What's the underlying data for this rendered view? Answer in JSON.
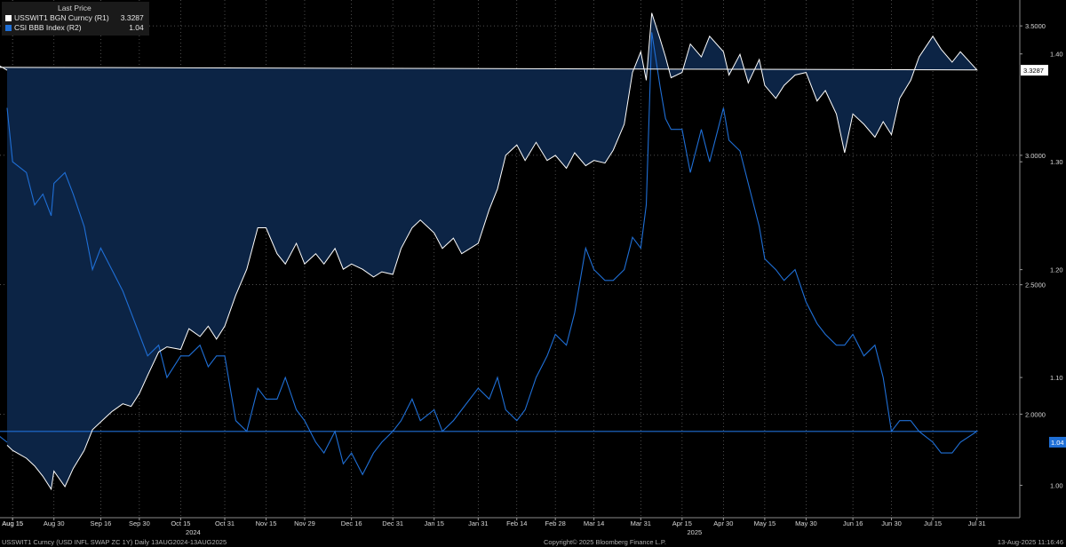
{
  "legend": {
    "header": "Last Price",
    "items": [
      {
        "label": "USSWIT1 BGN Curncy  (R1)",
        "value": "3.3287",
        "color": "#ffffff"
      },
      {
        "label": "CSI BBB Index  (R2)",
        "value": "1.04",
        "color": "#1f6fd6"
      }
    ]
  },
  "footer": {
    "left": "USSWIT1 Curncy (USD INFL SWAP ZC 1Y)  Daily 13AUG2024-13AUG2025",
    "center": "Copyright© 2025 Bloomberg Finance L.P.",
    "right": "13-Aug-2025 11:16:46"
  },
  "colors": {
    "background": "#000000",
    "swap_line": "#ffffff",
    "swap_fill": "#0c2445",
    "csi_line": "#1f6fd6",
    "grid": "#6a6a6a"
  },
  "chart_data": {
    "type": "line",
    "title": "",
    "x_tick_labels": [
      "Aug 15",
      "Aug 30",
      "Sep 16",
      "Sep 30",
      "Oct 15",
      "Oct 31",
      "Nov 15",
      "Nov 29",
      "Dec 16",
      "Dec 31",
      "Jan 15",
      "Jan 31",
      "Feb 14",
      "Feb 28",
      "Mar 14",
      "Mar 31",
      "Apr 15",
      "Apr 30",
      "May 15",
      "May 30",
      "Jun 16",
      "Jun 30",
      "Jul 15",
      "Jul 31",
      "Aug 15"
    ],
    "x_year_labels": [
      {
        "after": "Oct 15",
        "label": "2024"
      },
      {
        "after": "Apr 15",
        "label": "2025"
      }
    ],
    "axes": {
      "R1": {
        "ticks": [
          "2.0000",
          "2.5000",
          "3.0000",
          "3.5000"
        ],
        "ylim": [
          1.6,
          3.6
        ]
      },
      "R2": {
        "ticks": [
          "1.00",
          "1.10",
          "1.20",
          "1.30",
          "1.40"
        ],
        "ylim": [
          0.97,
          1.45
        ]
      }
    },
    "grid": true,
    "legend_position": "top-left",
    "series": [
      {
        "name": "USSWIT1 BGN Curncy",
        "axis": "R1",
        "style": "filled line",
        "last": "3.3287",
        "points": [
          [
            "Aug 13",
            1.88
          ],
          [
            "Aug 15",
            1.86
          ],
          [
            "Aug 20",
            1.83
          ],
          [
            "Aug 23",
            1.8
          ],
          [
            "Aug 26",
            1.76
          ],
          [
            "Aug 29",
            1.71
          ],
          [
            "Aug 30",
            1.78
          ],
          [
            "Sep 3",
            1.72
          ],
          [
            "Sep 6",
            1.79
          ],
          [
            "Sep 10",
            1.86
          ],
          [
            "Sep 13",
            1.94
          ],
          [
            "Sep 16",
            1.97
          ],
          [
            "Sep 20",
            2.01
          ],
          [
            "Sep 24",
            2.04
          ],
          [
            "Sep 27",
            2.03
          ],
          [
            "Sep 30",
            2.08
          ],
          [
            "Oct 3",
            2.15
          ],
          [
            "Oct 7",
            2.24
          ],
          [
            "Oct 10",
            2.26
          ],
          [
            "Oct 15",
            2.25
          ],
          [
            "Oct 18",
            2.33
          ],
          [
            "Oct 22",
            2.3
          ],
          [
            "Oct 25",
            2.34
          ],
          [
            "Oct 28",
            2.29
          ],
          [
            "Oct 31",
            2.34
          ],
          [
            "Nov 4",
            2.46
          ],
          [
            "Nov 8",
            2.56
          ],
          [
            "Nov 12",
            2.72
          ],
          [
            "Nov 15",
            2.72
          ],
          [
            "Nov 19",
            2.62
          ],
          [
            "Nov 22",
            2.58
          ],
          [
            "Nov 26",
            2.66
          ],
          [
            "Nov 29",
            2.58
          ],
          [
            "Dec 3",
            2.62
          ],
          [
            "Dec 6",
            2.58
          ],
          [
            "Dec 10",
            2.64
          ],
          [
            "Dec 13",
            2.56
          ],
          [
            "Dec 16",
            2.58
          ],
          [
            "Dec 20",
            2.56
          ],
          [
            "Dec 24",
            2.53
          ],
          [
            "Dec 27",
            2.55
          ],
          [
            "Dec 31",
            2.54
          ],
          [
            "Jan 3",
            2.64
          ],
          [
            "Jan 7",
            2.72
          ],
          [
            "Jan 10",
            2.75
          ],
          [
            "Jan 15",
            2.7
          ],
          [
            "Jan 18",
            2.64
          ],
          [
            "Jan 22",
            2.68
          ],
          [
            "Jan 25",
            2.62
          ],
          [
            "Jan 31",
            2.66
          ],
          [
            "Feb 4",
            2.79
          ],
          [
            "Feb 7",
            2.87
          ],
          [
            "Feb 10",
            3.0
          ],
          [
            "Feb 14",
            3.04
          ],
          [
            "Feb 17",
            2.98
          ],
          [
            "Feb 21",
            3.05
          ],
          [
            "Feb 25",
            2.98
          ],
          [
            "Feb 28",
            3.0
          ],
          [
            "Mar 4",
            2.95
          ],
          [
            "Mar 7",
            3.01
          ],
          [
            "Mar 11",
            2.96
          ],
          [
            "Mar 14",
            2.98
          ],
          [
            "Mar 18",
            2.97
          ],
          [
            "Mar 21",
            3.02
          ],
          [
            "Mar 25",
            3.12
          ],
          [
            "Mar 28",
            3.32
          ],
          [
            "Mar 31",
            3.4
          ],
          [
            "Apr 2",
            3.29
          ],
          [
            "Apr 4",
            3.55
          ],
          [
            "Apr 7",
            3.45
          ],
          [
            "Apr 9",
            3.38
          ],
          [
            "Apr 11",
            3.3
          ],
          [
            "Apr 15",
            3.32
          ],
          [
            "Apr 18",
            3.43
          ],
          [
            "Apr 22",
            3.38
          ],
          [
            "Apr 25",
            3.46
          ],
          [
            "Apr 30",
            3.4
          ],
          [
            "May 2",
            3.31
          ],
          [
            "May 6",
            3.39
          ],
          [
            "May 9",
            3.28
          ],
          [
            "May 13",
            3.37
          ],
          [
            "May 15",
            3.27
          ],
          [
            "May 19",
            3.22
          ],
          [
            "May 22",
            3.27
          ],
          [
            "May 26",
            3.31
          ],
          [
            "May 30",
            3.32
          ],
          [
            "Jun 3",
            3.21
          ],
          [
            "Jun 6",
            3.25
          ],
          [
            "Jun 10",
            3.16
          ],
          [
            "Jun 13",
            3.01
          ],
          [
            "Jun 16",
            3.16
          ],
          [
            "Jun 20",
            3.12
          ],
          [
            "Jun 24",
            3.07
          ],
          [
            "Jun 27",
            3.13
          ],
          [
            "Jun 30",
            3.08
          ],
          [
            "Jul 3",
            3.22
          ],
          [
            "Jul 7",
            3.29
          ],
          [
            "Jul 10",
            3.38
          ],
          [
            "Jul 15",
            3.46
          ],
          [
            "Jul 18",
            3.41
          ],
          [
            "Jul 22",
            3.36
          ],
          [
            "Jul 25",
            3.4
          ],
          [
            "Jul 31",
            3.33
          ],
          [
            "Aug 4",
            3.34
          ],
          [
            "Aug 8",
            3.36
          ],
          [
            "Aug 13",
            3.3287
          ]
        ]
      },
      {
        "name": "CSI BBB Index",
        "axis": "R2",
        "style": "line",
        "last": "1.04",
        "points": [
          [
            "Aug 13",
            1.35
          ],
          [
            "Aug 15",
            1.3
          ],
          [
            "Aug 20",
            1.29
          ],
          [
            "Aug 23",
            1.26
          ],
          [
            "Aug 26",
            1.27
          ],
          [
            "Aug 29",
            1.25
          ],
          [
            "Aug 30",
            1.28
          ],
          [
            "Sep 3",
            1.29
          ],
          [
            "Sep 6",
            1.27
          ],
          [
            "Sep 10",
            1.24
          ],
          [
            "Sep 13",
            1.2
          ],
          [
            "Sep 16",
            1.22
          ],
          [
            "Sep 20",
            1.2
          ],
          [
            "Sep 24",
            1.18
          ],
          [
            "Sep 27",
            1.16
          ],
          [
            "Sep 30",
            1.14
          ],
          [
            "Oct 3",
            1.12
          ],
          [
            "Oct 7",
            1.13
          ],
          [
            "Oct 10",
            1.1
          ],
          [
            "Oct 15",
            1.12
          ],
          [
            "Oct 18",
            1.12
          ],
          [
            "Oct 22",
            1.13
          ],
          [
            "Oct 25",
            1.11
          ],
          [
            "Oct 28",
            1.12
          ],
          [
            "Oct 31",
            1.12
          ],
          [
            "Nov 4",
            1.06
          ],
          [
            "Nov 8",
            1.05
          ],
          [
            "Nov 12",
            1.09
          ],
          [
            "Nov 15",
            1.08
          ],
          [
            "Nov 19",
            1.08
          ],
          [
            "Nov 22",
            1.1
          ],
          [
            "Nov 26",
            1.07
          ],
          [
            "Nov 29",
            1.06
          ],
          [
            "Dec 3",
            1.04
          ],
          [
            "Dec 6",
            1.03
          ],
          [
            "Dec 10",
            1.05
          ],
          [
            "Dec 13",
            1.02
          ],
          [
            "Dec 16",
            1.03
          ],
          [
            "Dec 20",
            1.01
          ],
          [
            "Dec 24",
            1.03
          ],
          [
            "Dec 27",
            1.04
          ],
          [
            "Dec 31",
            1.05
          ],
          [
            "Jan 3",
            1.06
          ],
          [
            "Jan 7",
            1.08
          ],
          [
            "Jan 10",
            1.06
          ],
          [
            "Jan 15",
            1.07
          ],
          [
            "Jan 18",
            1.05
          ],
          [
            "Jan 22",
            1.06
          ],
          [
            "Jan 25",
            1.07
          ],
          [
            "Jan 31",
            1.09
          ],
          [
            "Feb 4",
            1.08
          ],
          [
            "Feb 7",
            1.1
          ],
          [
            "Feb 10",
            1.07
          ],
          [
            "Feb 14",
            1.06
          ],
          [
            "Feb 17",
            1.07
          ],
          [
            "Feb 21",
            1.1
          ],
          [
            "Feb 25",
            1.12
          ],
          [
            "Feb 28",
            1.14
          ],
          [
            "Mar 4",
            1.13
          ],
          [
            "Mar 7",
            1.16
          ],
          [
            "Mar 11",
            1.22
          ],
          [
            "Mar 14",
            1.2
          ],
          [
            "Mar 18",
            1.19
          ],
          [
            "Mar 21",
            1.19
          ],
          [
            "Mar 25",
            1.2
          ],
          [
            "Mar 28",
            1.23
          ],
          [
            "Mar 31",
            1.22
          ],
          [
            "Apr 2",
            1.26
          ],
          [
            "Apr 4",
            1.42
          ],
          [
            "Apr 7",
            1.37
          ],
          [
            "Apr 9",
            1.34
          ],
          [
            "Apr 11",
            1.33
          ],
          [
            "Apr 15",
            1.33
          ],
          [
            "Apr 18",
            1.29
          ],
          [
            "Apr 22",
            1.33
          ],
          [
            "Apr 25",
            1.3
          ],
          [
            "Apr 30",
            1.35
          ],
          [
            "May 2",
            1.32
          ],
          [
            "May 6",
            1.31
          ],
          [
            "May 9",
            1.28
          ],
          [
            "May 13",
            1.24
          ],
          [
            "May 15",
            1.21
          ],
          [
            "May 19",
            1.2
          ],
          [
            "May 22",
            1.19
          ],
          [
            "May 26",
            1.2
          ],
          [
            "May 30",
            1.17
          ],
          [
            "Jun 3",
            1.15
          ],
          [
            "Jun 6",
            1.14
          ],
          [
            "Jun 10",
            1.13
          ],
          [
            "Jun 13",
            1.13
          ],
          [
            "Jun 16",
            1.14
          ],
          [
            "Jun 20",
            1.12
          ],
          [
            "Jun 24",
            1.13
          ],
          [
            "Jun 27",
            1.1
          ],
          [
            "Jun 30",
            1.05
          ],
          [
            "Jul 3",
            1.06
          ],
          [
            "Jul 7",
            1.06
          ],
          [
            "Jul 10",
            1.05
          ],
          [
            "Jul 15",
            1.04
          ],
          [
            "Jul 18",
            1.03
          ],
          [
            "Jul 22",
            1.03
          ],
          [
            "Jul 25",
            1.04
          ],
          [
            "Jul 31",
            1.05
          ],
          [
            "Aug 4",
            1.05
          ],
          [
            "Aug 8",
            1.05
          ],
          [
            "Aug 13",
            1.04
          ]
        ]
      }
    ]
  }
}
